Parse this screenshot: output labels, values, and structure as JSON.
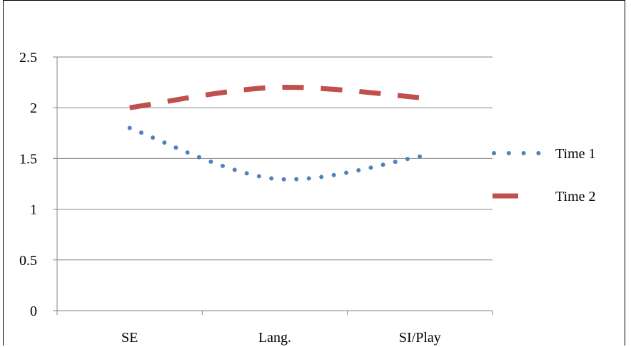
{
  "chart_data": {
    "type": "line",
    "categories": [
      "SE",
      "Lang.",
      "SI/Play"
    ],
    "series": [
      {
        "name": "Time 1",
        "values": [
          1.8,
          1.3,
          1.52
        ],
        "color": "#4f81bd",
        "style": "dotted"
      },
      {
        "name": "Time 2",
        "values": [
          2.0,
          2.2,
          2.1
        ],
        "color": "#c0504d",
        "style": "dashed"
      }
    ],
    "ylim": [
      0,
      2.5
    ],
    "yticks": [
      "0",
      "0.5",
      "1",
      "1.5",
      "2",
      "2.5"
    ],
    "grid": true,
    "smooth": true,
    "legend_position": "right"
  }
}
